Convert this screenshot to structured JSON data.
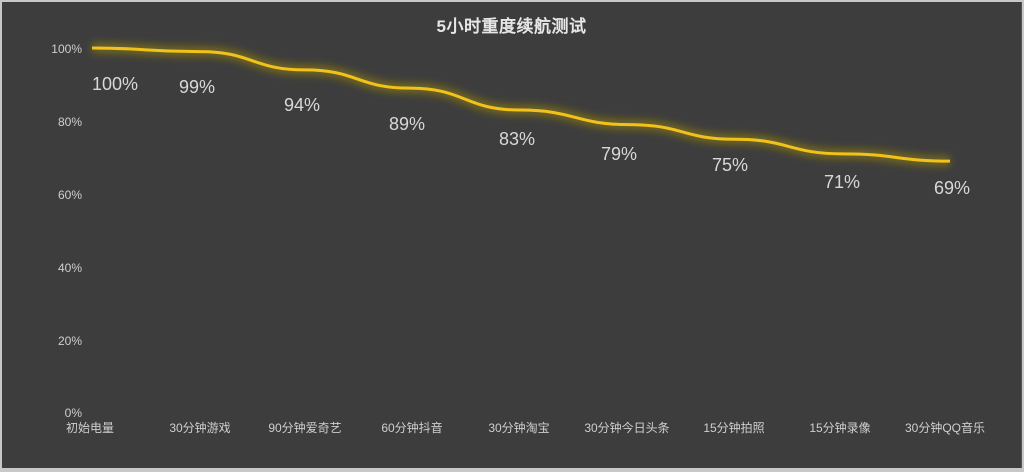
{
  "chart_data": {
    "type": "line",
    "title": "5小时重度续航测试",
    "xlabel": "",
    "ylabel": "",
    "categories": [
      "初始电量",
      "30分钟游戏",
      "90分钟爱奇艺",
      "60分钟抖音",
      "30分钟淘宝",
      "30分钟今日头条",
      "15分钟拍照",
      "15分钟录像",
      "30分钟QQ音乐"
    ],
    "series": [
      {
        "name": "电量",
        "values": [
          100,
          99,
          94,
          89,
          83,
          79,
          75,
          71,
          69
        ],
        "color": "#f2c21a"
      }
    ],
    "data_labels": [
      "100%",
      "99%",
      "94%",
      "89%",
      "83%",
      "79%",
      "75%",
      "71%",
      "69%"
    ],
    "yticks": [
      "0%",
      "20%",
      "40%",
      "60%",
      "80%",
      "100%"
    ],
    "ylim": [
      0,
      100
    ],
    "grid": false,
    "legend": "none",
    "background": "#3d3d3d"
  }
}
